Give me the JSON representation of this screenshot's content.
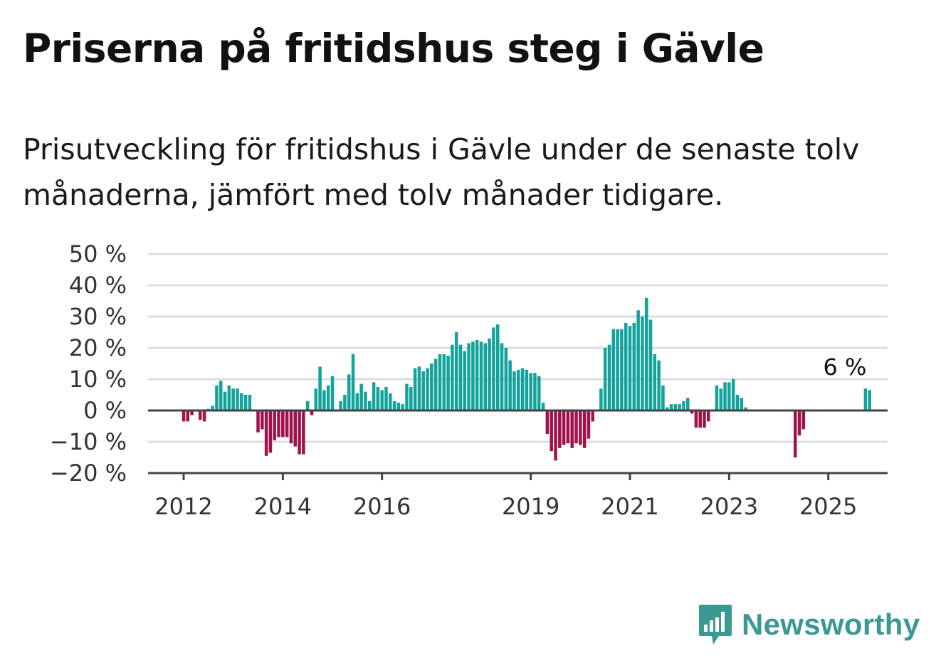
{
  "title": "Priserna på fritidshus steg i Gävle",
  "subtitle": "Prisutveckling för fritidshus i Gävle under de senaste tolv månaderna, jämfört med tolv månader tidigare.",
  "brand": {
    "name": "Newsworthy",
    "color": "#3a9a93"
  },
  "colors": {
    "positive": "#13a39b",
    "negative": "#a0124b",
    "grid": "#dddddd",
    "baseline": "#444444"
  },
  "chart_data": {
    "type": "bar",
    "title": "",
    "xlabel": "",
    "ylabel": "",
    "ylim": [
      -20,
      50
    ],
    "yticks": [
      -20,
      -10,
      0,
      10,
      20,
      30,
      40,
      50
    ],
    "ytick_labels": [
      "−20 %",
      "−10 %",
      "0 %",
      "10 %",
      "20 %",
      "30 %",
      "40 %",
      "50 %"
    ],
    "xticks": [
      {
        "label": "2012",
        "month": "2012-01"
      },
      {
        "label": "2014",
        "month": "2014-01"
      },
      {
        "label": "2016",
        "month": "2016-01"
      },
      {
        "label": "2019",
        "month": "2019-01"
      },
      {
        "label": "2021",
        "month": "2021-01"
      },
      {
        "label": "2023",
        "month": "2023-01"
      },
      {
        "label": "2025",
        "month": "2025-01"
      }
    ],
    "grid": true,
    "annotation": {
      "text": "6 %",
      "month": "2025-05"
    },
    "series": [
      {
        "start_month": "2011-08",
        "values": [
          0,
          0,
          0,
          0,
          0,
          -3.5,
          -3.5,
          -1.5,
          0,
          -3,
          -3.5,
          0.5,
          1.5,
          8,
          9.5,
          6,
          8,
          7,
          7,
          5.5,
          5,
          5,
          0,
          -7,
          -6,
          -14.5,
          -13.5,
          -9.5,
          -8.5,
          -8.5,
          -8.5,
          -10.5,
          -11.5,
          -14,
          -14,
          3,
          -1.5,
          7,
          14,
          6.5,
          8,
          11,
          0,
          3,
          5,
          11.5,
          18,
          5.5,
          8.5,
          6,
          3,
          9,
          7.5,
          6.5,
          7.5,
          5.5,
          3,
          2.5,
          2,
          8.5,
          7.5,
          13.5,
          14,
          12.5,
          13.5,
          15,
          16.5,
          18,
          18,
          17.5,
          21,
          25,
          21,
          19,
          21.5,
          22,
          22.5,
          22,
          21.5,
          23,
          26.5,
          27.5,
          21.5,
          20,
          16,
          12.5,
          13,
          13.5,
          13,
          12,
          12,
          11,
          2.5,
          -7.5,
          -13,
          -16,
          -12,
          -11,
          -10.5,
          -12,
          -10.5,
          -11,
          -12,
          -9,
          -3.5,
          0,
          7,
          20,
          21,
          26,
          26,
          26,
          28,
          27,
          28,
          32,
          30,
          36,
          29,
          18,
          16,
          8,
          1,
          2,
          2,
          2,
          3,
          4,
          -1,
          -5.5,
          -5.5,
          -5.5,
          -3.5,
          0,
          8,
          7,
          9,
          9,
          10,
          5,
          4,
          1,
          0,
          0,
          0,
          0,
          0,
          0,
          0,
          0,
          0,
          0,
          0,
          -15,
          -8,
          -6,
          0,
          0,
          0,
          0,
          0,
          0,
          0,
          0,
          0,
          0,
          0,
          0,
          0,
          0,
          7,
          6.5
        ]
      }
    ]
  }
}
